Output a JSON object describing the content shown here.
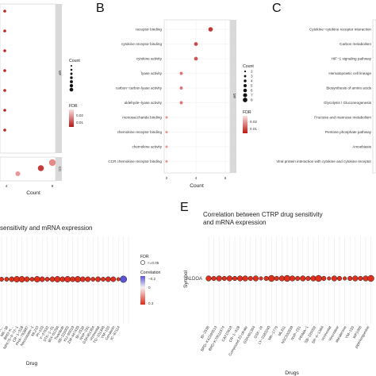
{
  "panels": {
    "B": {
      "letter": "B"
    },
    "C": {
      "letter": "C"
    },
    "E": {
      "letter": "E"
    }
  },
  "chart_data": [
    {
      "id": "A",
      "type": "scatter",
      "xlabel": "Count",
      "x_ticks": [
        "4",
        "8"
      ],
      "legend": {
        "count_title": "Count",
        "fdr_title": "FDR",
        "fdr_ticks": [
          "0.02",
          "0.01"
        ]
      },
      "facets": [
        {
          "strip": "MF",
          "points": [
            {
              "y": 0
            },
            {
              "y": 1
            },
            {
              "y": 2
            },
            {
              "y": 3
            },
            {
              "y": 4
            },
            {
              "y": 5
            },
            {
              "y": 6
            }
          ]
        },
        {
          "strip": "CC",
          "points": [
            {
              "x": 8,
              "y": 0,
              "size": 8,
              "fdr": 0.018
            },
            {
              "x": 7,
              "y": 1,
              "size": 7,
              "fdr": 0.006
            },
            {
              "x": 5,
              "y": 2,
              "size": 5,
              "fdr": 0.02
            }
          ]
        }
      ]
    },
    {
      "id": "B",
      "type": "scatter",
      "strip": "MF",
      "categories": [
        "receptor binding",
        "cytokine receptor binding",
        "cytokine activity",
        "lyase activity",
        "carbon−carbon lyase activity",
        "aldehyde−lyase activity",
        "monosaccharide binding",
        "chemokine receptor binding",
        "chemokine activity",
        "CCR chemokine receptor binding"
      ],
      "counts": [
        5,
        4,
        4,
        3,
        3,
        3,
        2,
        2,
        2,
        2
      ],
      "fdr": [
        0.005,
        0.008,
        0.01,
        0.015,
        0.015,
        0.015,
        0.02,
        0.02,
        0.02,
        0.02
      ],
      "xlabel": "Count",
      "x_ticks": [
        2,
        4,
        6
      ],
      "xlim": [
        2,
        6
      ],
      "legend": {
        "count_title": "Count",
        "count_values": [
          "2",
          "3",
          "4",
          "5",
          "6",
          "7",
          "8"
        ],
        "fdr_title": "FDR",
        "fdr_ticks": [
          "0.02",
          "0.01"
        ]
      }
    },
    {
      "id": "C",
      "type": "scatter",
      "categories": [
        "Cytokine−cytokine receptor interaction",
        "Carbon metabolism",
        "HIF−1 signaling pathway",
        "Hematopoietic cell lineage",
        "Biosynthesis of amino acids",
        "Glycolysis / Gluconeogenesis",
        "Fructose and mannose metabolism",
        "Pentose phosphate pathway",
        "Amoebiasis",
        "Viral protein interaction with cytokine and cytokine receptor"
      ]
    },
    {
      "id": "D",
      "type": "scatter",
      "title": "sensitivity and mRNA expression",
      "xlabel": "Drug",
      "x_ticks": [
        "BRD−K...",
        "MK−36",
        "BRD−K...",
        "NPK76−II−72−1",
        "CR−1−31B",
        "PHA−793887",
        "Necrostatin−1",
        "ML210",
        "PI−103",
        "Y−27632",
        "STK−1−01",
        "BIX−01294",
        "Tivantinib",
        "SB−225002",
        "KU−60019",
        "ZM−447439",
        "BI−2536",
        "NVP−231",
        "GSK461364",
        "Vorinostat",
        "TG−101348",
        "YM−155",
        "Cerulenin",
        "IC−87114"
      ],
      "points": [
        {
          "value": 0.3,
          "size": 3
        },
        {
          "value": 0.3,
          "size": 3
        },
        {
          "value": 0.3,
          "size": 4
        },
        {
          "value": 0.3,
          "size": 5
        },
        {
          "value": 0.3,
          "size": 5
        },
        {
          "value": 0.3,
          "size": 4
        },
        {
          "value": 0.3,
          "size": 3
        },
        {
          "value": 0.3,
          "size": 5
        },
        {
          "value": 0.3,
          "size": 4
        },
        {
          "value": 0.3,
          "size": 3
        },
        {
          "value": 0.3,
          "size": 4
        },
        {
          "value": 0.3,
          "size": 5
        },
        {
          "value": 0.3,
          "size": 4
        },
        {
          "value": 0.3,
          "size": 5
        },
        {
          "value": 0.3,
          "size": 4
        },
        {
          "value": 0.3,
          "size": 5
        },
        {
          "value": 0.3,
          "size": 4
        },
        {
          "value": 0.3,
          "size": 4
        },
        {
          "value": 0.3,
          "size": 3
        },
        {
          "value": 0.3,
          "size": 4
        },
        {
          "value": 0.3,
          "size": 3
        },
        {
          "value": 0.3,
          "size": 4
        },
        {
          "value": 0.3,
          "size": 4
        },
        {
          "value": 0.3,
          "size": 2
        },
        {
          "value": -0.2,
          "size": 6
        }
      ],
      "legend": {
        "fdr_title": "FDR",
        "fdr_label": "<=0.05",
        "corr_title": "Correlation",
        "corr_ticks": [
          "−0.2",
          "0",
          "0.3"
        ]
      }
    },
    {
      "id": "E",
      "type": "scatter",
      "title": "Correlation between CTRP drug sensitivity and mRNA expression",
      "ylabel": "Symbol",
      "symbol": "ALDOA",
      "xlabel": "Drugs",
      "x_ticks": [
        "BI−2536",
        "BRD−K42260513",
        "BRD−K70511574",
        "CAY10618",
        "CR−1−31B",
        "Compound 23 citrate",
        "GSK461364",
        "GSK−J4",
        "LY−2183240",
        "MK−1775",
        "ML311",
        "NSC632839",
        "NVP−231",
        "PRIMA−1",
        "SB−225002",
        "SR−II−138A",
        "Vorinostat",
        "Vincristine",
        "abiraterone",
        "YM−155",
        "WP1066",
        "piperlongumine"
      ],
      "points": [
        {
          "size": 4
        },
        {
          "size": 3
        },
        {
          "size": 4
        },
        {
          "size": 3
        },
        {
          "size": 4
        },
        {
          "size": 3
        },
        {
          "size": 4
        },
        {
          "size": 4
        },
        {
          "size": 3
        },
        {
          "size": 4
        },
        {
          "size": 2
        },
        {
          "size": 3
        },
        {
          "size": 5
        },
        {
          "size": 3
        },
        {
          "size": 4
        },
        {
          "size": 5
        },
        {
          "size": 4
        },
        {
          "size": 3
        },
        {
          "size": 4
        },
        {
          "size": 3
        },
        {
          "size": 4
        },
        {
          "size": 5
        },
        {
          "size": 3
        },
        {
          "size": 2
        },
        {
          "size": 4
        },
        {
          "size": 3
        },
        {
          "size": 2
        },
        {
          "size": 3
        },
        {
          "size": 4
        },
        {
          "size": 3
        },
        {
          "size": 4
        },
        {
          "size": 5
        }
      ]
    }
  ]
}
